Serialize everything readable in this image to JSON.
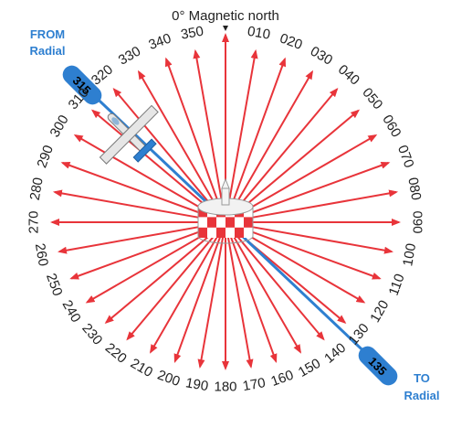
{
  "north_label": "0° Magnetic north",
  "from_label": {
    "line1": "FROM",
    "line2": "Radial"
  },
  "to_label": {
    "line1": "TO",
    "line2": "Radial"
  },
  "from_radial_tag": "315",
  "to_radial_tag": "135",
  "radial_labels": [
    "010",
    "020",
    "030",
    "040",
    "050",
    "060",
    "070",
    "080",
    "090",
    "100",
    "110",
    "120",
    "130",
    "140",
    "150",
    "160",
    "170",
    "180",
    "190",
    "200",
    "210",
    "220",
    "230",
    "240",
    "250",
    "260",
    "270",
    "280",
    "290",
    "300",
    "310",
    "320",
    "330",
    "340",
    "350"
  ],
  "colors": {
    "radial_arrow": "#e8343a",
    "course_line": "#2e7fd0",
    "label_blue": "#2e7fd0",
    "station_red": "#e8343a",
    "aircraft": "#e6e6e6",
    "aircraft_tail": "#2e7fd0"
  },
  "icons": [
    "vor-station-icon",
    "aircraft-icon",
    "north-pointer-icon"
  ]
}
